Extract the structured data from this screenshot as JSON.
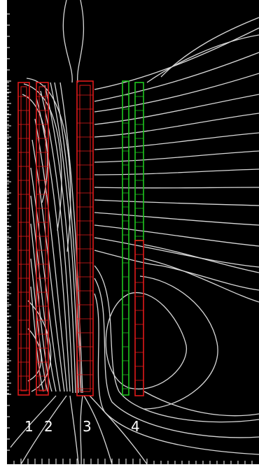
{
  "plot": {
    "background": "#000000",
    "field_line_color": "#d8d8d8",
    "coil_color_red": "#e01a1a",
    "coil_color_green": "#1fc51f",
    "tick_color": "#ffffff"
  },
  "labels": {
    "coil_1": "1",
    "coil_2": "2",
    "coil_3": "3",
    "coil_4": "4"
  }
}
